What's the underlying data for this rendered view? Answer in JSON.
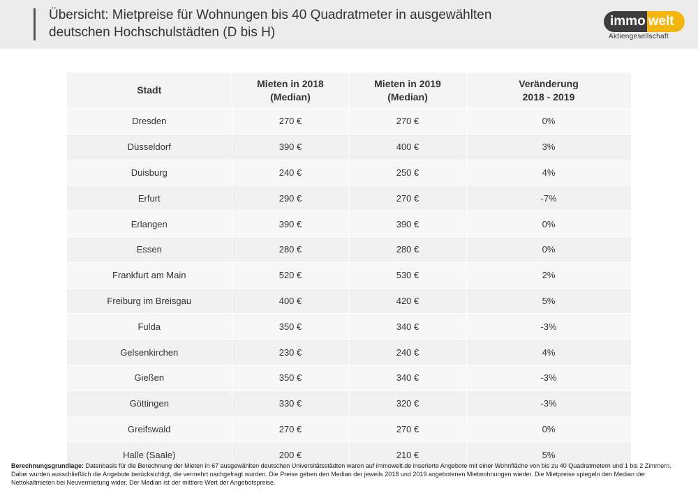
{
  "header": {
    "title_line1": "Übersicht: Mietpreise für Wohnungen bis 40 Quadratmeter in ausgewählten",
    "title_line2": "deutschen Hochschulstädten (D bis H)"
  },
  "logo": {
    "part1": "immo",
    "part2": "welt",
    "subtitle": "Aktiengesellschaft",
    "colors": {
      "dark": "#3d3d3d",
      "accent": "#f5b50f"
    }
  },
  "table": {
    "headers": {
      "city": "Stadt",
      "rent2018_line1": "Mieten in 2018",
      "rent2018_line2": "(Median)",
      "rent2019_line1": "Mieten in 2019",
      "rent2019_line2": "(Median)",
      "change_line1": "Veränderung",
      "change_line2": "2018 - 2019"
    },
    "rows": [
      {
        "city": "Dresden",
        "rent2018": "270 €",
        "rent2019": "270 €",
        "change": "0%"
      },
      {
        "city": "Düsseldorf",
        "rent2018": "390 €",
        "rent2019": "400 €",
        "change": "3%"
      },
      {
        "city": "Duisburg",
        "rent2018": "240 €",
        "rent2019": "250 €",
        "change": "4%"
      },
      {
        "city": "Erfurt",
        "rent2018": "290 €",
        "rent2019": "270 €",
        "change": "-7%"
      },
      {
        "city": "Erlangen",
        "rent2018": "390 €",
        "rent2019": "390 €",
        "change": "0%"
      },
      {
        "city": "Essen",
        "rent2018": "280 €",
        "rent2019": "280 €",
        "change": "0%"
      },
      {
        "city": "Frankfurt am Main",
        "rent2018": "520 €",
        "rent2019": "530 €",
        "change": "2%"
      },
      {
        "city": "Freiburg im Breisgau",
        "rent2018": "400 €",
        "rent2019": "420 €",
        "change": "5%"
      },
      {
        "city": "Fulda",
        "rent2018": "350 €",
        "rent2019": "340 €",
        "change": "-3%"
      },
      {
        "city": "Gelsenkirchen",
        "rent2018": "230 €",
        "rent2019": "240 €",
        "change": "4%"
      },
      {
        "city": "Gießen",
        "rent2018": "350 €",
        "rent2019": "340 €",
        "change": "-3%"
      },
      {
        "city": "Göttingen",
        "rent2018": "330 €",
        "rent2019": "320 €",
        "change": "-3%"
      },
      {
        "city": "Greifswald",
        "rent2018": "270 €",
        "rent2019": "270 €",
        "change": "0%"
      },
      {
        "city": "Halle (Saale)",
        "rent2018": "200 €",
        "rent2019": "210 €",
        "change": "5%"
      }
    ]
  },
  "footnote": {
    "label": "Berechnungsgrundlage:",
    "text": " Datenbasis für die Berechnung der Mieten in 67 ausgewählten deutschen Universitätsstädten waren auf immowelt.de inserierte Angebote mit einer Wohnfläche von bis zu 40 Quadratmetern und 1 bis 2 Zimmern. Dabei wurden ausschließlich die Angebote berücksichtigt, die vermehrt nachgefragt wurden. Die Preise geben den Median der jeweils 2018 und 2019 angebotenen Mietwohnungen wieder. Die Mietpreise spiegeln den Median der Nettokaltmieten bei Neuvermietung wider. Der Median ist der mittlere Wert der Angebotspreise."
  }
}
